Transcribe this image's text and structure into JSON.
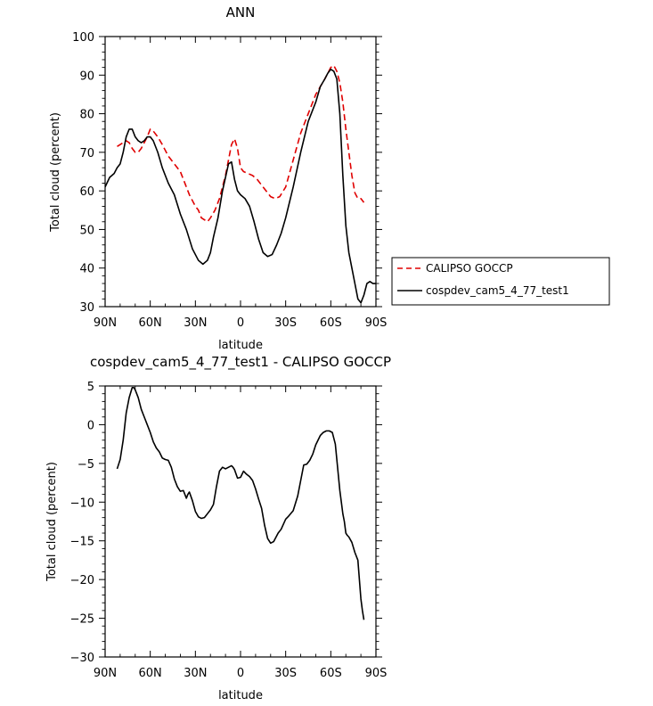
{
  "chart_data": [
    {
      "type": "line",
      "title": "ANN",
      "xlabel": "latitude",
      "ylabel": "Total cloud (percent)",
      "xlim": [
        90,
        -90
      ],
      "ylim": [
        30,
        100
      ],
      "xtick_values": [
        90,
        60,
        30,
        0,
        -30,
        -60,
        -90
      ],
      "xtick_labels": [
        "90N",
        "60N",
        "30N",
        "0",
        "30S",
        "60S",
        "90S"
      ],
      "ytick_values": [
        30,
        40,
        50,
        60,
        70,
        80,
        90,
        100
      ],
      "ytick_labels": [
        "30",
        "40",
        "50",
        "60",
        "70",
        "80",
        "90",
        "100"
      ],
      "legend_position": "right",
      "series": [
        {
          "name": "CALIPSO GOCCP",
          "color": "#e00000",
          "dash": true,
          "x": [
            82,
            80,
            76,
            74,
            72,
            70,
            68,
            66,
            62,
            60,
            58,
            55,
            52,
            48,
            44,
            40,
            36,
            34,
            30,
            28,
            26,
            22,
            20,
            17,
            14,
            10,
            6,
            4,
            2,
            0,
            -2,
            -5,
            -8,
            -11,
            -14,
            -17,
            -20,
            -23,
            -26,
            -30,
            -35,
            -40,
            -45,
            -50,
            -53,
            -56,
            -58,
            -60,
            -62,
            -64,
            -66,
            -68,
            -70,
            -72,
            -74,
            -76,
            -78,
            -80,
            -82
          ],
          "values": [
            71.5,
            72,
            73,
            72.5,
            71,
            70,
            70,
            71,
            74,
            76,
            75.5,
            74,
            72,
            69,
            67,
            65,
            61,
            59,
            56,
            55,
            53,
            52,
            53,
            55,
            58,
            64,
            72,
            73.5,
            71,
            66,
            65,
            64.5,
            64,
            63,
            61.5,
            60,
            58.5,
            58,
            58.5,
            61,
            68,
            75,
            80,
            85,
            87,
            89,
            90.5,
            92,
            92.5,
            91,
            88,
            83,
            76,
            70,
            64,
            59.5,
            58,
            58,
            57
          ]
        },
        {
          "name": "cospdev_cam5_4_77_test1",
          "color": "#000000",
          "dash": false,
          "x": [
            90,
            87,
            84,
            82,
            80,
            78,
            76,
            74,
            72,
            70,
            68,
            66,
            64,
            62,
            60,
            58,
            55,
            52,
            48,
            44,
            40,
            36,
            32,
            28,
            25,
            22,
            20,
            18,
            15,
            12,
            8,
            6,
            4,
            2,
            0,
            -3,
            -6,
            -9,
            -12,
            -15,
            -18,
            -21,
            -24,
            -27,
            -30,
            -35,
            -40,
            -45,
            -50,
            -53,
            -56,
            -58,
            -60,
            -62,
            -64,
            -66,
            -68,
            -70,
            -72,
            -74,
            -76,
            -78,
            -80,
            -82,
            -84,
            -86,
            -88,
            -90
          ],
          "values": [
            61,
            63.5,
            64.5,
            66,
            67,
            70,
            74,
            76,
            76,
            74,
            73,
            72.5,
            73,
            74,
            74,
            73,
            70,
            66,
            62,
            59,
            54,
            50,
            45,
            42,
            41,
            42,
            44,
            48,
            53,
            60,
            67,
            67.5,
            63,
            60,
            59,
            58,
            56,
            52,
            47.5,
            44,
            43,
            43.5,
            46,
            49,
            53,
            61,
            70,
            78,
            83,
            87,
            89,
            90.5,
            91.5,
            91,
            89,
            80,
            64,
            51,
            44,
            40,
            36,
            32,
            31,
            33,
            36,
            36.5,
            36,
            36
          ]
        }
      ]
    },
    {
      "type": "line",
      "title": "cospdev_cam5_4_77_test1 - CALIPSO GOCCP",
      "xlabel": "latitude",
      "ylabel": "Total cloud (percent)",
      "xlim": [
        90,
        -90
      ],
      "ylim": [
        -30,
        5
      ],
      "xtick_values": [
        90,
        60,
        30,
        0,
        -30,
        -60,
        -90
      ],
      "xtick_labels": [
        "90N",
        "60N",
        "30N",
        "0",
        "30S",
        "60S",
        "90S"
      ],
      "ytick_values": [
        -30,
        -25,
        -20,
        -15,
        -10,
        -5,
        0,
        5
      ],
      "ytick_labels": [
        "−30",
        "−25",
        "−20",
        "−15",
        "−10",
        "−5",
        "0",
        "5"
      ],
      "series": [
        {
          "name": "",
          "color": "#000000",
          "dash": false,
          "x": [
            82,
            80,
            78,
            76,
            74,
            72,
            71,
            70,
            68,
            66,
            64,
            62,
            60,
            58,
            56,
            54,
            52,
            50,
            48,
            46,
            44,
            42,
            40,
            38,
            37,
            36,
            35,
            34,
            32,
            30,
            28,
            26,
            24,
            22,
            20,
            18,
            16,
            14,
            12,
            10,
            8,
            6,
            5,
            4,
            2,
            0,
            -2,
            -4,
            -6,
            -8,
            -10,
            -12,
            -14,
            -16,
            -18,
            -20,
            -22,
            -25,
            -27,
            -30,
            -32,
            -35,
            -38,
            -42,
            -44,
            -46,
            -48,
            -50,
            -53,
            -55,
            -57,
            -59,
            -61,
            -63,
            -64,
            -65,
            -66,
            -67,
            -68,
            -69,
            -70,
            -71,
            -72,
            -74,
            -76,
            -78,
            -79,
            -80,
            -81,
            -82
          ],
          "values": [
            -5.7,
            -4.5,
            -2,
            1.5,
            3.5,
            4.8,
            4.8,
            4.5,
            3.5,
            2,
            1,
            0,
            -1,
            -2.2,
            -3,
            -3.5,
            -4.3,
            -4.5,
            -4.6,
            -5.5,
            -7,
            -8,
            -8.6,
            -8.5,
            -9,
            -9.5,
            -9,
            -8.7,
            -9.8,
            -11.2,
            -11.9,
            -12.1,
            -12,
            -11.5,
            -11,
            -10.3,
            -8,
            -6,
            -5.5,
            -5.7,
            -5.5,
            -5.3,
            -5.5,
            -5.8,
            -6.9,
            -6.8,
            -6,
            -6.4,
            -6.7,
            -7.2,
            -8.3,
            -9.6,
            -10.8,
            -13,
            -14.7,
            -15.3,
            -15.1,
            -14,
            -13.5,
            -12.2,
            -11.8,
            -11.1,
            -9.2,
            -5.2,
            -5.1,
            -4.6,
            -3.8,
            -2.6,
            -1.4,
            -1,
            -0.8,
            -0.8,
            -1,
            -2.5,
            -4.5,
            -6.5,
            -8.5,
            -10,
            -11.5,
            -12.5,
            -14,
            -14.3,
            -14.5,
            -15.2,
            -16.5,
            -17.5,
            -20,
            -22.5,
            -24,
            -25.2
          ]
        }
      ]
    }
  ]
}
